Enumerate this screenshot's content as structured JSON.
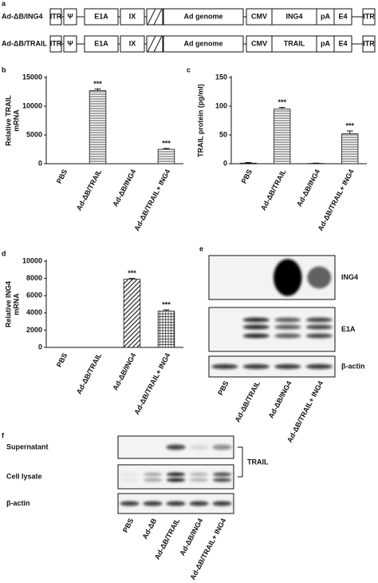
{
  "constructs": {
    "panel": "a",
    "rows": [
      {
        "name": "Ad-ΔB/ING4",
        "segments": [
          "ITR",
          "Ψ",
          "E1A",
          "IX",
          "Ad genome",
          "CMV",
          "ING4",
          "pA",
          "E4",
          "ITR"
        ]
      },
      {
        "name": "Ad-ΔB/TRAIL",
        "segments": [
          "ITR",
          "Ψ",
          "E1A",
          "IX",
          "Ad genome",
          "CMV",
          "TRAIL",
          "pA",
          "E4",
          "ITR"
        ]
      }
    ]
  },
  "chart_data": [
    {
      "type": "bar",
      "panel": "b",
      "y_label": [
        "Relative TRAIL",
        "mRNA"
      ],
      "categories": [
        "PBS",
        "Ad-ΔB/TRAIL",
        "Ad-ΔB/ING4",
        "Ad-ΔB/TRAIL+ ING4"
      ],
      "values": [
        0,
        12700,
        0,
        2500
      ],
      "errors": [
        0,
        300,
        0,
        150
      ],
      "annotations": [
        null,
        "***",
        null,
        "***"
      ],
      "ylim": [
        0,
        15000
      ],
      "yticks": [
        0,
        5000,
        10000,
        15000
      ]
    },
    {
      "type": "bar",
      "panel": "c",
      "y_label": [
        "TRAIL protein (pg/ml)"
      ],
      "categories": [
        "PBS",
        "Ad-ΔB/TRAIL",
        "Ad-ΔB/ING4",
        "Ad-ΔB/TRAIL+ ING4"
      ],
      "values": [
        1,
        95,
        0.5,
        52
      ],
      "errors": [
        1,
        3,
        0.5,
        5
      ],
      "annotations": [
        null,
        "***",
        null,
        "***"
      ],
      "ylim": [
        0,
        150
      ],
      "yticks": [
        0,
        50,
        100,
        150
      ]
    },
    {
      "type": "bar",
      "panel": "d",
      "y_label": [
        "Relative ING4",
        "mRNA"
      ],
      "categories": [
        "PBS",
        "Ad-ΔB/TRAIL",
        "Ad-ΔB/ING4",
        "Ad-ΔB/TRAIL+ ING4"
      ],
      "values": [
        0,
        0,
        7900,
        4200
      ],
      "errors": [
        0,
        0,
        100,
        150
      ],
      "annotations": [
        null,
        null,
        "***",
        "***"
      ],
      "ylim": [
        0,
        10000
      ],
      "yticks": [
        0,
        2000,
        4000,
        6000,
        8000,
        10000
      ]
    }
  ],
  "blots": [
    {
      "panel": "e",
      "rows": [
        "ING4",
        "E1A",
        "β-actin"
      ],
      "lanes": [
        "PBS",
        "Ad-ΔB/TRAIL",
        "Ad-ΔB/ING4",
        "Ad-ΔB/TRAIL+ ING4"
      ]
    },
    {
      "panel": "f",
      "rows": [
        "Supernatant",
        "Cell lysate",
        "β-actin"
      ],
      "bracket_label": "TRAIL",
      "lanes": [
        "PBS",
        "Ad-ΔB",
        "Ad-ΔB/TRAIL",
        "Ad-ΔB/ING4",
        "Ad-ΔB/TRAIL+ ING4"
      ]
    }
  ]
}
